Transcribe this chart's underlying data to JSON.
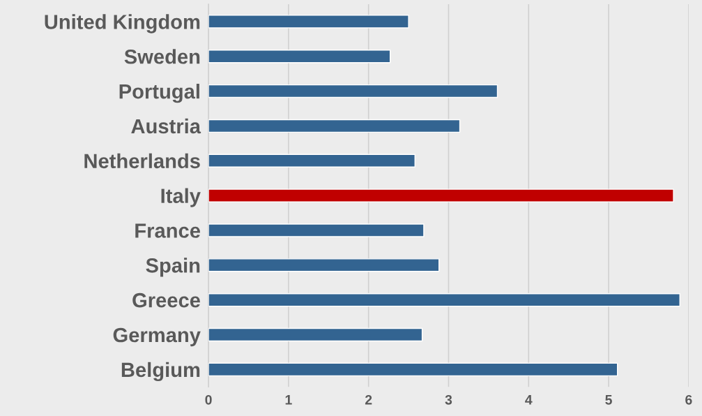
{
  "chart_data": {
    "type": "bar",
    "orientation": "horizontal",
    "categories": [
      "United Kingdom",
      "Sweden",
      "Portugal",
      "Austria",
      "Netherlands",
      "Italy",
      "France",
      "Spain",
      "Greece",
      "Germany",
      "Belgium"
    ],
    "values": [
      2.5,
      2.27,
      3.61,
      3.14,
      2.58,
      5.81,
      2.69,
      2.88,
      5.89,
      2.67,
      5.11
    ],
    "colors": [
      "#336491",
      "#336491",
      "#336491",
      "#336491",
      "#336491",
      "#c00000",
      "#336491",
      "#336491",
      "#336491",
      "#336491",
      "#336491"
    ],
    "xlim": [
      0,
      6
    ],
    "xticks": [
      0,
      1,
      2,
      3,
      4,
      5,
      6
    ],
    "grid": "x"
  }
}
